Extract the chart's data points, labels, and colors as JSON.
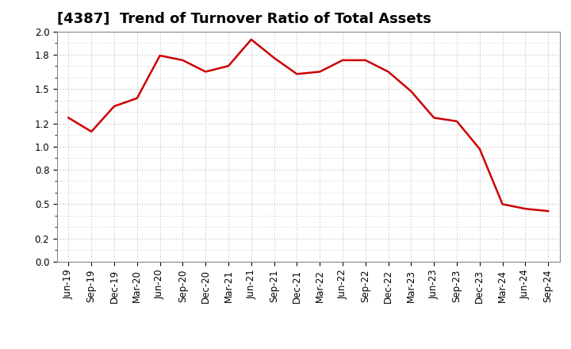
{
  "title": "[4387]  Trend of Turnover Ratio of Total Assets",
  "x_labels": [
    "Jun-19",
    "Sep-19",
    "Dec-19",
    "Mar-20",
    "Jun-20",
    "Sep-20",
    "Dec-20",
    "Mar-21",
    "Jun-21",
    "Sep-21",
    "Dec-21",
    "Mar-22",
    "Jun-22",
    "Sep-22",
    "Dec-22",
    "Mar-23",
    "Jun-23",
    "Sep-23",
    "Dec-23",
    "Mar-24",
    "Jun-24",
    "Sep-24"
  ],
  "y_values": [
    1.25,
    1.13,
    1.35,
    1.42,
    1.79,
    1.75,
    1.65,
    1.7,
    1.93,
    1.77,
    1.63,
    1.65,
    1.75,
    1.75,
    1.65,
    1.48,
    1.25,
    1.22,
    0.98,
    0.5,
    0.46,
    0.44
  ],
  "line_color": "#cc0000",
  "background_color": "#ffffff",
  "plot_bg_color": "#ffffff",
  "grid_color": "#bbbbbb",
  "ylim": [
    0.0,
    2.0
  ],
  "ytick_positions": [
    0.0,
    0.2,
    0.5,
    0.8,
    1.0,
    1.2,
    1.5,
    1.8,
    2.0
  ],
  "ytick_labels": [
    "0.0",
    "0.2",
    "0.5",
    "0.8",
    "1.0",
    "1.2",
    "1.5",
    "1.8",
    "2.0"
  ],
  "title_fontsize": 13,
  "tick_fontsize": 8.5,
  "line_width": 1.8
}
